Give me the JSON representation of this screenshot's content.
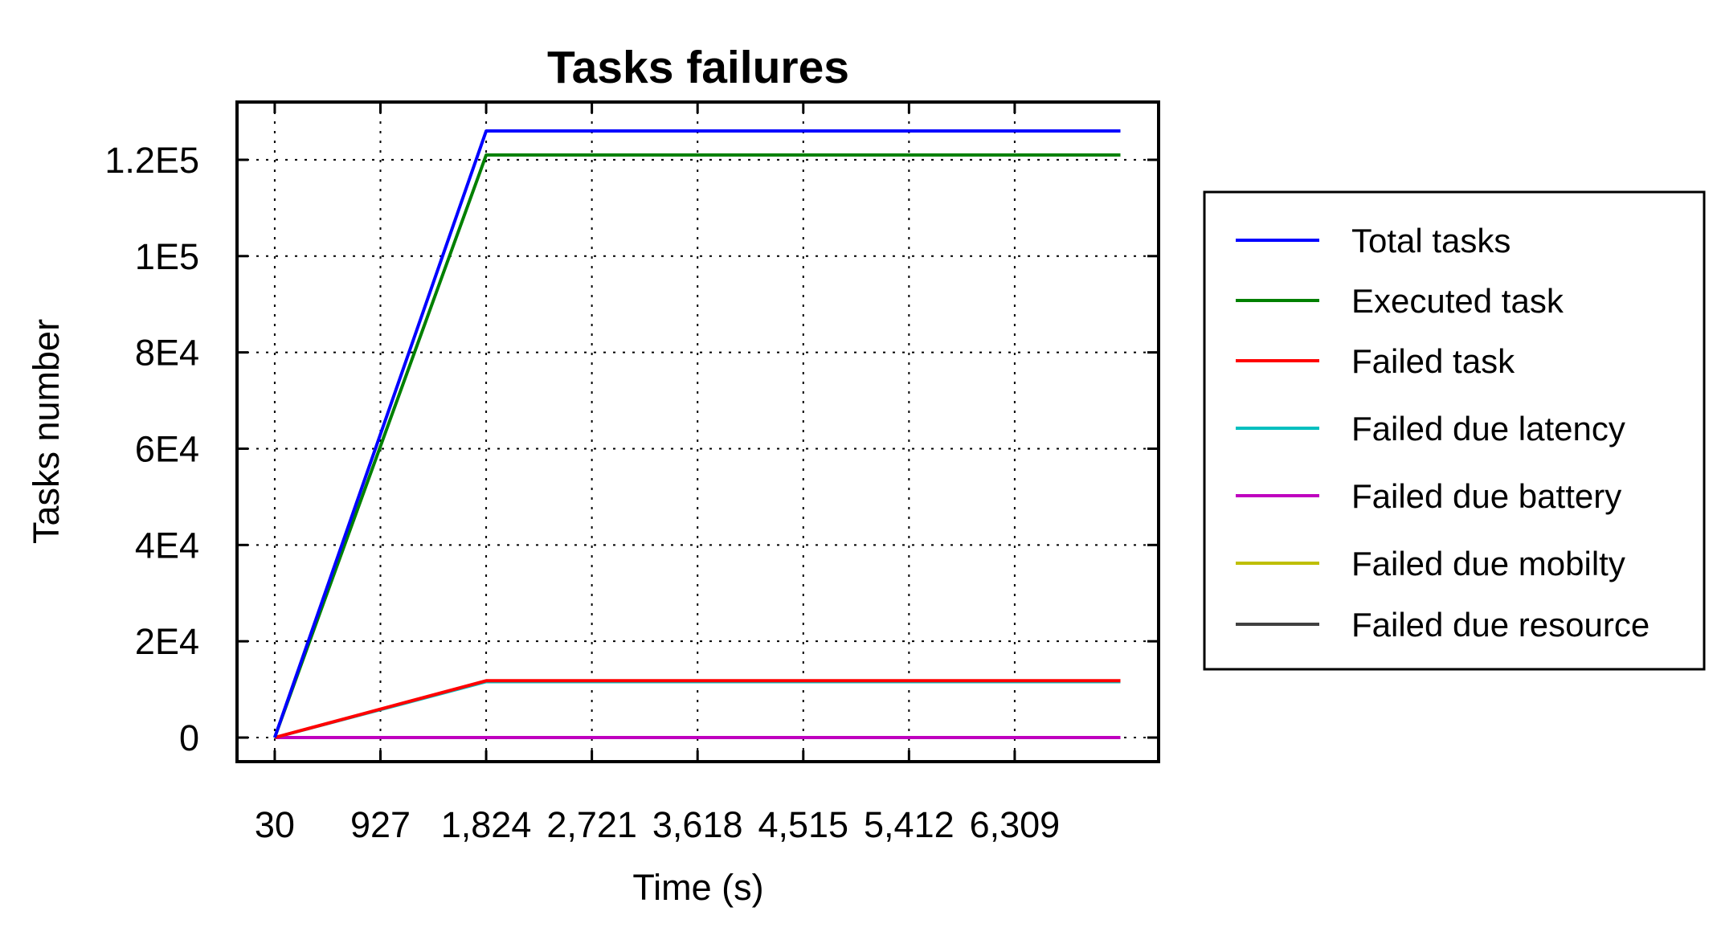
{
  "chart_data": {
    "type": "line",
    "title": "Tasks failures",
    "xlabel": "Time (s)",
    "ylabel": "Tasks number",
    "x_tick_labels": [
      "30",
      "927",
      "1,824",
      "2,721",
      "3,618",
      "4,515",
      "5,412",
      "6,309"
    ],
    "x_ticks": [
      30,
      927,
      1824,
      2721,
      3618,
      4515,
      5412,
      6309
    ],
    "xlim": [
      -290,
      7530
    ],
    "y_tick_labels": [
      "0",
      "2E4",
      "4E4",
      "6E4",
      "8E4",
      "1E5",
      "1.2E5"
    ],
    "y_ticks": [
      0,
      20000,
      40000,
      60000,
      80000,
      100000,
      120000
    ],
    "ylim": [
      -5000,
      132000
    ],
    "grid": true,
    "legend_position": "right",
    "x": [
      30,
      1824,
      7206
    ],
    "series": [
      {
        "name": "Total tasks",
        "color": "#0000ff",
        "values": [
          0,
          126000,
          126000
        ]
      },
      {
        "name": "Executed task",
        "color": "#008000",
        "values": [
          0,
          121000,
          121000
        ]
      },
      {
        "name": "Failed task",
        "color": "#ff0000",
        "values": [
          0,
          11800,
          11800
        ]
      },
      {
        "name": "Failed due latency",
        "color": "#00bfbf",
        "values": [
          0,
          11600,
          11600
        ]
      },
      {
        "name": "Failed due battery",
        "color": "#bf00bf",
        "values": [
          0,
          0,
          0
        ]
      },
      {
        "name": "Failed due mobilty",
        "color": "#bfbf00",
        "values": [
          0,
          0,
          0
        ]
      },
      {
        "name": "Failed due resource",
        "color": "#404040",
        "values": [
          0,
          0,
          0
        ]
      }
    ]
  }
}
